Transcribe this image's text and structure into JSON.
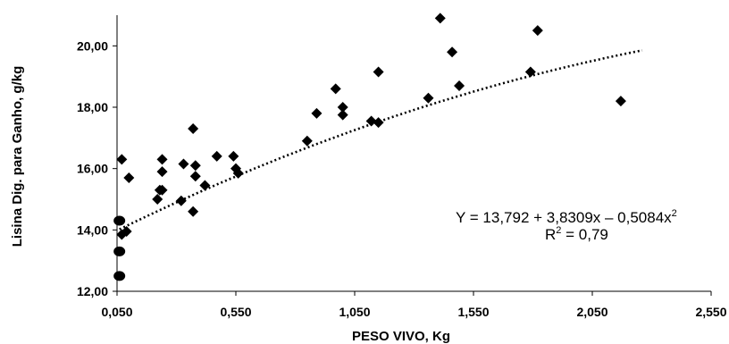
{
  "chart_data": {
    "type": "scatter",
    "title": "",
    "xlabel": "PESO VIVO, Kg",
    "ylabel": "Lisina Dig. para Ganho, g/kg",
    "xlim": [
      0.05,
      2.55
    ],
    "ylim": [
      12.0,
      21.0
    ],
    "x_ticks": [
      "0,050",
      "0,550",
      "1,050",
      "1,550",
      "2,050",
      "2,550"
    ],
    "y_ticks": [
      "12,00",
      "14,00",
      "16,00",
      "18,00",
      "20,00"
    ],
    "y_tick_values": [
      12.0,
      14.0,
      16.0,
      18.0,
      20.0
    ],
    "x_tick_values": [
      0.05,
      0.55,
      1.05,
      1.55,
      2.05,
      2.55
    ],
    "grid": false,
    "colors": {
      "points": "#000000",
      "trendline": "#000000"
    },
    "series": [
      {
        "marker": "diamond",
        "points": [
          {
            "x": 0.07,
            "y": 16.3
          },
          {
            "x": 0.07,
            "y": 13.85
          },
          {
            "x": 0.09,
            "y": 13.95
          },
          {
            "x": 0.1,
            "y": 15.7
          },
          {
            "x": 0.22,
            "y": 15.0
          },
          {
            "x": 0.23,
            "y": 15.3
          },
          {
            "x": 0.24,
            "y": 15.3
          },
          {
            "x": 0.24,
            "y": 15.9
          },
          {
            "x": 0.24,
            "y": 16.3
          },
          {
            "x": 0.32,
            "y": 14.95
          },
          {
            "x": 0.33,
            "y": 16.15
          },
          {
            "x": 0.37,
            "y": 17.3
          },
          {
            "x": 0.37,
            "y": 14.6
          },
          {
            "x": 0.38,
            "y": 16.1
          },
          {
            "x": 0.38,
            "y": 15.75
          },
          {
            "x": 0.42,
            "y": 15.45
          },
          {
            "x": 0.47,
            "y": 16.4
          },
          {
            "x": 0.54,
            "y": 16.4
          },
          {
            "x": 0.55,
            "y": 16.0
          },
          {
            "x": 0.56,
            "y": 15.85
          },
          {
            "x": 0.85,
            "y": 16.9
          },
          {
            "x": 0.89,
            "y": 17.8
          },
          {
            "x": 0.97,
            "y": 18.6
          },
          {
            "x": 1.0,
            "y": 18.0
          },
          {
            "x": 1.0,
            "y": 17.75
          },
          {
            "x": 1.12,
            "y": 17.55
          },
          {
            "x": 1.15,
            "y": 17.5
          },
          {
            "x": 1.15,
            "y": 19.15
          },
          {
            "x": 1.36,
            "y": 18.3
          },
          {
            "x": 1.41,
            "y": 20.9
          },
          {
            "x": 1.46,
            "y": 19.8
          },
          {
            "x": 1.49,
            "y": 18.7
          },
          {
            "x": 1.79,
            "y": 19.15
          },
          {
            "x": 1.82,
            "y": 20.5
          },
          {
            "x": 2.17,
            "y": 18.2
          }
        ]
      },
      {
        "marker": "circle",
        "points": [
          {
            "x": 0.06,
            "y": 14.3
          },
          {
            "x": 0.06,
            "y": 13.3
          },
          {
            "x": 0.06,
            "y": 12.5
          }
        ]
      }
    ],
    "trendline": {
      "style": "dotted",
      "x_range": [
        0.06,
        2.26
      ],
      "equation": "Y = 13,792 + 3,8309x – 0,5084x",
      "equation_sup": "2",
      "r2_prefix": "R",
      "r2_sup": "2",
      "r2_value": " = 0,79"
    }
  }
}
